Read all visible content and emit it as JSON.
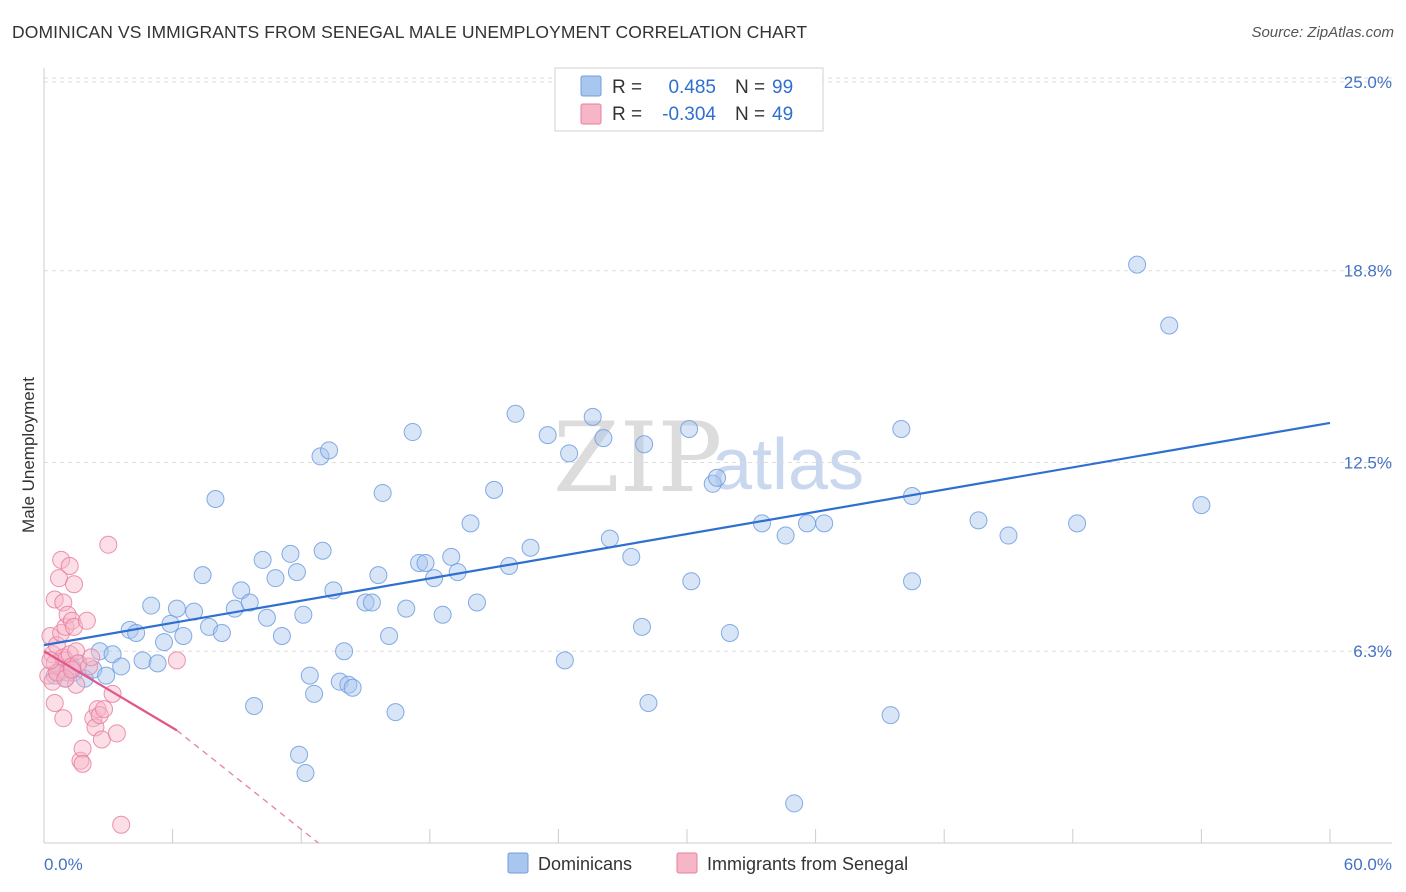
{
  "title": "DOMINICAN VS IMMIGRANTS FROM SENEGAL MALE UNEMPLOYMENT CORRELATION CHART",
  "source": "Source: ZipAtlas.com",
  "watermark": {
    "zip": "ZIP",
    "atlas": "atlas"
  },
  "legend": {
    "rows": [
      {
        "r_label": "R =",
        "r_value": "0.485",
        "n_label": "N =",
        "n_value": "99",
        "color": "#a9c6ee"
      },
      {
        "r_label": "R =",
        "r_value": "-0.304",
        "n_label": "N =",
        "n_value": "49",
        "color": "#f7b6c8"
      }
    ]
  },
  "bottom_legend": [
    {
      "label": "Dominicans",
      "color": "#a9c6ee"
    },
    {
      "label": "Immigrants from Senegal",
      "color": "#f7b6c8"
    }
  ],
  "chart_data": {
    "type": "scatter",
    "title": "DOMINICAN VS IMMIGRANTS FROM SENEGAL MALE UNEMPLOYMENT CORRELATION CHART",
    "xlabel": "",
    "ylabel": "Male Unemployment",
    "xlim": [
      0,
      60
    ],
    "ylim": [
      0,
      25
    ],
    "x_tick_labels": [
      "0.0%",
      "60.0%"
    ],
    "y_ticks": [
      6.3,
      12.5,
      18.8,
      25.0
    ],
    "y_tick_labels": [
      "6.3%",
      "12.5%",
      "18.8%",
      "25.0%"
    ],
    "grid": true,
    "series": [
      {
        "name": "Dominicans",
        "color": "#6f9ee0",
        "fill": "#a9c6ee",
        "trend": {
          "x0": 0,
          "y0": 6.5,
          "x1": 60,
          "y1": 13.8
        },
        "points": [
          [
            0.5,
            5.5
          ],
          [
            0.8,
            5.7
          ],
          [
            1.0,
            5.4
          ],
          [
            1.2,
            5.8
          ],
          [
            1.4,
            5.6
          ],
          [
            1.6,
            5.9
          ],
          [
            1.9,
            5.4
          ],
          [
            2.3,
            5.7
          ],
          [
            2.6,
            6.3
          ],
          [
            2.9,
            5.5
          ],
          [
            3.2,
            6.2
          ],
          [
            3.6,
            5.8
          ],
          [
            4.0,
            7.0
          ],
          [
            4.3,
            6.9
          ],
          [
            4.6,
            6.0
          ],
          [
            5.0,
            7.8
          ],
          [
            5.3,
            5.9
          ],
          [
            5.6,
            6.6
          ],
          [
            5.9,
            7.2
          ],
          [
            6.2,
            7.7
          ],
          [
            6.5,
            6.8
          ],
          [
            7.0,
            7.6
          ],
          [
            7.4,
            8.8
          ],
          [
            7.7,
            7.1
          ],
          [
            8.0,
            11.3
          ],
          [
            8.3,
            6.9
          ],
          [
            8.9,
            7.7
          ],
          [
            9.2,
            8.3
          ],
          [
            9.6,
            7.9
          ],
          [
            9.8,
            4.5
          ],
          [
            10.2,
            9.3
          ],
          [
            10.4,
            7.4
          ],
          [
            10.8,
            8.7
          ],
          [
            11.1,
            6.8
          ],
          [
            11.5,
            9.5
          ],
          [
            11.8,
            8.9
          ],
          [
            11.9,
            2.9
          ],
          [
            12.1,
            7.5
          ],
          [
            12.4,
            5.5
          ],
          [
            12.6,
            4.9
          ],
          [
            12.9,
            12.7
          ],
          [
            13.0,
            9.6
          ],
          [
            13.3,
            12.9
          ],
          [
            13.5,
            8.3
          ],
          [
            13.8,
            5.3
          ],
          [
            14.0,
            6.3
          ],
          [
            14.2,
            5.2
          ],
          [
            14.4,
            5.1
          ],
          [
            15.0,
            7.9
          ],
          [
            15.3,
            7.9
          ],
          [
            15.6,
            8.8
          ],
          [
            15.8,
            11.5
          ],
          [
            16.1,
            6.8
          ],
          [
            16.4,
            4.3
          ],
          [
            16.9,
            7.7
          ],
          [
            17.2,
            13.5
          ],
          [
            17.5,
            9.2
          ],
          [
            17.8,
            9.2
          ],
          [
            18.2,
            8.7
          ],
          [
            18.6,
            7.5
          ],
          [
            19.0,
            9.4
          ],
          [
            19.3,
            8.9
          ],
          [
            19.9,
            10.5
          ],
          [
            20.2,
            7.9
          ],
          [
            21.0,
            11.6
          ],
          [
            21.7,
            9.1
          ],
          [
            22.0,
            14.1
          ],
          [
            22.7,
            9.7
          ],
          [
            23.5,
            13.4
          ],
          [
            24.3,
            6.0
          ],
          [
            24.5,
            12.8
          ],
          [
            25.6,
            14.0
          ],
          [
            26.1,
            13.3
          ],
          [
            26.4,
            10.0
          ],
          [
            27.4,
            9.4
          ],
          [
            28.0,
            13.1
          ],
          [
            27.9,
            7.1
          ],
          [
            28.2,
            4.6
          ],
          [
            30.2,
            8.6
          ],
          [
            30.1,
            13.6
          ],
          [
            31.2,
            11.8
          ],
          [
            31.4,
            12.0
          ],
          [
            32.0,
            6.9
          ],
          [
            33.5,
            10.5
          ],
          [
            34.6,
            10.1
          ],
          [
            35.6,
            10.5
          ],
          [
            36.4,
            10.5
          ],
          [
            39.5,
            4.2
          ],
          [
            40.0,
            13.6
          ],
          [
            40.5,
            11.4
          ],
          [
            40.5,
            8.6
          ],
          [
            43.6,
            10.6
          ],
          [
            45.0,
            10.1
          ],
          [
            48.2,
            10.5
          ],
          [
            51.0,
            19.0
          ],
          [
            52.5,
            17.0
          ],
          [
            54.0,
            11.1
          ],
          [
            12.2,
            2.3
          ],
          [
            35.0,
            1.3
          ]
        ]
      },
      {
        "name": "Immigrants from Senegal",
        "color": "#e77fa2",
        "fill": "#f7b6c8",
        "trend": {
          "x0": 0,
          "y0": 6.3,
          "x1": 6.2,
          "y1": 3.7,
          "dash_to": {
            "x": 12.8,
            "y": 0.0
          }
        },
        "points": [
          [
            0.2,
            5.5
          ],
          [
            0.3,
            6.8
          ],
          [
            0.4,
            6.2
          ],
          [
            0.5,
            8.0
          ],
          [
            0.5,
            5.9
          ],
          [
            0.6,
            6.5
          ],
          [
            0.7,
            8.7
          ],
          [
            0.7,
            5.6
          ],
          [
            0.8,
            6.9
          ],
          [
            0.8,
            9.3
          ],
          [
            0.9,
            7.9
          ],
          [
            0.9,
            6.1
          ],
          [
            1.0,
            7.1
          ],
          [
            1.0,
            6.0
          ],
          [
            1.1,
            7.5
          ],
          [
            1.1,
            5.6
          ],
          [
            1.2,
            9.1
          ],
          [
            1.2,
            6.2
          ],
          [
            1.3,
            7.3
          ],
          [
            1.3,
            5.8
          ],
          [
            1.4,
            8.5
          ],
          [
            1.4,
            7.1
          ],
          [
            1.5,
            6.3
          ],
          [
            1.5,
            5.2
          ],
          [
            1.6,
            5.9
          ],
          [
            1.7,
            2.7
          ],
          [
            1.8,
            3.1
          ],
          [
            2.0,
            7.3
          ],
          [
            2.1,
            5.8
          ],
          [
            2.2,
            6.1
          ],
          [
            2.3,
            4.1
          ],
          [
            2.4,
            3.8
          ],
          [
            2.5,
            4.4
          ],
          [
            2.6,
            4.2
          ],
          [
            2.7,
            3.4
          ],
          [
            3.0,
            9.8
          ],
          [
            3.2,
            4.9
          ],
          [
            3.4,
            3.6
          ],
          [
            3.6,
            0.6
          ],
          [
            6.2,
            6.0
          ],
          [
            0.4,
            5.3
          ],
          [
            0.6,
            5.6
          ],
          [
            0.9,
            4.1
          ],
          [
            1.0,
            5.4
          ],
          [
            1.8,
            2.6
          ],
          [
            0.3,
            6.0
          ],
          [
            0.5,
            4.6
          ],
          [
            1.3,
            5.7
          ],
          [
            2.8,
            4.4
          ]
        ]
      }
    ]
  }
}
